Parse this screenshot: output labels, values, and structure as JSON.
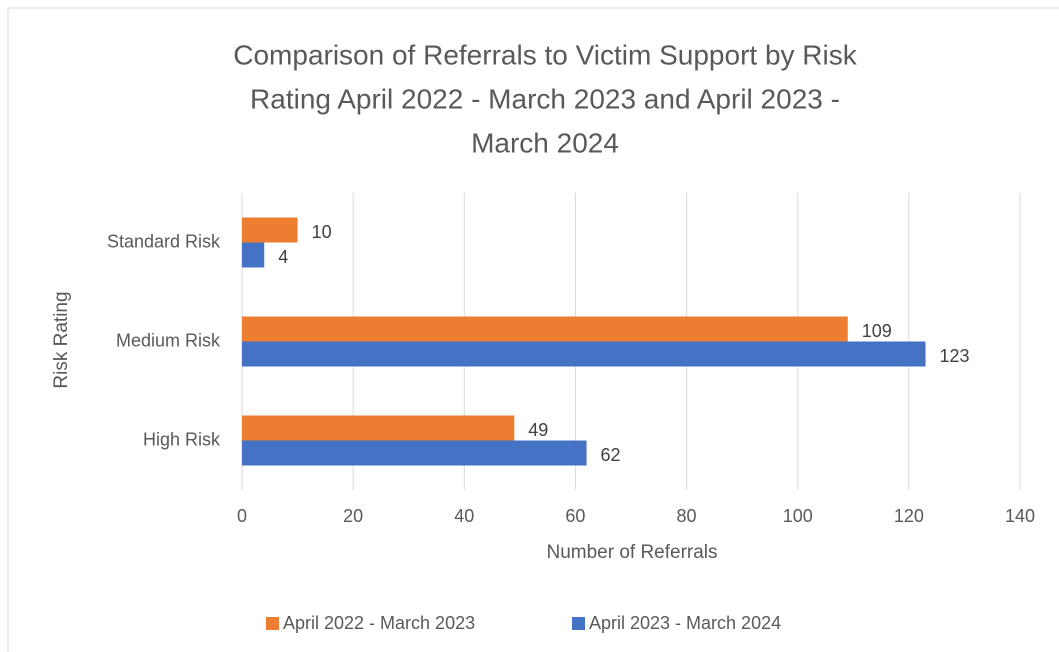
{
  "chart_data": {
    "type": "bar",
    "orientation": "horizontal",
    "title": [
      "Comparison of Referrals to Victim Support by Risk",
      "Rating April 2022 - March 2023 and April 2023 -",
      "March 2024"
    ],
    "xlabel": "Number of Referrals",
    "ylabel": "Risk Rating",
    "categories": [
      "Standard Risk",
      "Medium Risk",
      "High Risk"
    ],
    "series": [
      {
        "name": "April 2022 - March 2023",
        "color": "#ed7d31",
        "values": [
          10,
          109,
          49
        ]
      },
      {
        "name": "April 2023 - March 2024",
        "color": "#4472c4",
        "values": [
          4,
          123,
          62
        ]
      }
    ],
    "xlim": [
      0,
      140
    ],
    "xticks": [
      0,
      20,
      40,
      60,
      80,
      100,
      120,
      140
    ],
    "grid": true,
    "legend": "bottom"
  }
}
